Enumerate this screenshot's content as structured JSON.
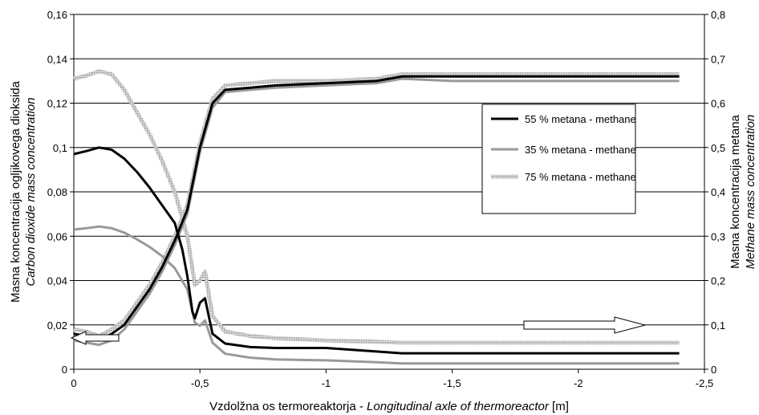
{
  "chart_data": {
    "type": "line",
    "x_axis": {
      "label_plain": "Vzdolžna os termoreaktorja - ",
      "label_italic": "Longitudinal axle of thermoreactor",
      "label_unit": " [m]",
      "range": [
        0,
        -2.5
      ],
      "ticks": [
        0,
        -0.5,
        -1,
        -1.5,
        -2,
        -2.5
      ],
      "tick_labels": [
        "0",
        "-0,5",
        "-1",
        "-1,5",
        "-2",
        "-2,5"
      ]
    },
    "y_left": {
      "label_line1": "Masna koncentracija ogljikovega dioksida",
      "label_line2": "Carbon dioxide mass concentration",
      "range": [
        0,
        0.16
      ],
      "ticks": [
        0,
        0.02,
        0.04,
        0.06,
        0.08,
        0.1,
        0.12,
        0.14,
        0.16
      ],
      "tick_labels": [
        "0",
        "0,02",
        "0,04",
        "0,06",
        "0,08",
        "0,1",
        "0,12",
        "0,14",
        "0,16"
      ]
    },
    "y_right": {
      "label_line1": "Masna koncentracija metana",
      "label_line2": "Methane mass concentration",
      "range": [
        0,
        0.8
      ],
      "ticks": [
        0,
        0.1,
        0.2,
        0.3,
        0.4,
        0.5,
        0.6,
        0.7,
        0.8
      ],
      "tick_labels": [
        "0",
        "0,1",
        "0,2",
        "0,3",
        "0,4",
        "0,5",
        "0,6",
        "0,7",
        "0,8"
      ]
    },
    "grid": "horizontal",
    "legend_placement": "right, inside plot",
    "series": [
      {
        "name": "55 % metana - methane",
        "color": "#000000",
        "style": "solid-thick",
        "methane_curve_x": [
          0,
          -0.05,
          -0.1,
          -0.15,
          -0.2,
          -0.25,
          -0.3,
          -0.35,
          -0.4,
          -0.43,
          -0.45,
          -0.47,
          -0.48,
          -0.5,
          -0.52,
          -0.55,
          -0.6,
          -0.7,
          -0.8,
          -1.0,
          -1.2,
          -1.3,
          -1.5,
          -2.0,
          -2.4
        ],
        "methane_curve_y": [
          0.485,
          0.492,
          0.5,
          0.495,
          0.475,
          0.445,
          0.41,
          0.37,
          0.33,
          0.27,
          0.21,
          0.13,
          0.115,
          0.15,
          0.16,
          0.08,
          0.058,
          0.05,
          0.048,
          0.048,
          0.04,
          0.036,
          0.036,
          0.036,
          0.036
        ],
        "co2_curve_x": [
          0,
          -0.05,
          -0.1,
          -0.15,
          -0.2,
          -0.25,
          -0.3,
          -0.35,
          -0.4,
          -0.45,
          -0.5,
          -0.55,
          -0.6,
          -0.7,
          -0.8,
          -1.0,
          -1.2,
          -1.3,
          -1.5,
          -2.0,
          -2.4
        ],
        "co2_curve_y": [
          0.016,
          0.015,
          0.013,
          0.016,
          0.02,
          0.028,
          0.036,
          0.046,
          0.058,
          0.072,
          0.1,
          0.12,
          0.126,
          0.127,
          0.128,
          0.129,
          0.13,
          0.132,
          0.132,
          0.132,
          0.132
        ]
      },
      {
        "name": "35 % metana - methane",
        "color": "#999999",
        "style": "solid",
        "methane_curve_x": [
          0,
          -0.05,
          -0.1,
          -0.15,
          -0.2,
          -0.25,
          -0.3,
          -0.35,
          -0.4,
          -0.45,
          -0.48,
          -0.5,
          -0.52,
          -0.55,
          -0.6,
          -0.7,
          -0.8,
          -1.0,
          -1.2,
          -1.3,
          -1.5,
          -2.0,
          -2.4
        ],
        "methane_curve_y": [
          0.315,
          0.318,
          0.322,
          0.318,
          0.308,
          0.293,
          0.276,
          0.255,
          0.228,
          0.18,
          0.105,
          0.098,
          0.11,
          0.06,
          0.035,
          0.026,
          0.022,
          0.02,
          0.016,
          0.013,
          0.013,
          0.013,
          0.013
        ],
        "co2_curve_x": [
          0,
          -0.05,
          -0.1,
          -0.15,
          -0.2,
          -0.25,
          -0.3,
          -0.35,
          -0.4,
          -0.45,
          -0.5,
          -0.55,
          -0.6,
          -0.7,
          -0.8,
          -1.0,
          -1.2,
          -1.3,
          -1.5,
          -2.0,
          -2.4
        ],
        "co2_curve_y": [
          0.013,
          0.012,
          0.011,
          0.013,
          0.018,
          0.026,
          0.034,
          0.044,
          0.056,
          0.07,
          0.098,
          0.118,
          0.125,
          0.126,
          0.127,
          0.128,
          0.129,
          0.131,
          0.13,
          0.13,
          0.13
        ]
      },
      {
        "name": "75 % metana - methane",
        "color": "#bdbdbd",
        "style": "dotted-thick",
        "methane_curve_x": [
          0,
          -0.05,
          -0.1,
          -0.15,
          -0.2,
          -0.25,
          -0.3,
          -0.35,
          -0.4,
          -0.45,
          -0.48,
          -0.5,
          -0.52,
          -0.55,
          -0.6,
          -0.7,
          -0.8,
          -1.0,
          -1.2,
          -1.3,
          -1.5,
          -2.0,
          -2.4
        ],
        "methane_curve_y": [
          0.655,
          0.662,
          0.672,
          0.665,
          0.63,
          0.58,
          0.53,
          0.47,
          0.4,
          0.3,
          0.19,
          0.2,
          0.22,
          0.12,
          0.085,
          0.075,
          0.07,
          0.065,
          0.062,
          0.06,
          0.06,
          0.06,
          0.06
        ],
        "co2_curve_x": [
          0,
          -0.05,
          -0.1,
          -0.15,
          -0.2,
          -0.25,
          -0.3,
          -0.35,
          -0.4,
          -0.45,
          -0.5,
          -0.55,
          -0.6,
          -0.7,
          -0.8,
          -1.0,
          -1.2,
          -1.3,
          -1.5,
          -2.0,
          -2.4
        ],
        "co2_curve_y": [
          0.018,
          0.017,
          0.015,
          0.018,
          0.022,
          0.03,
          0.038,
          0.048,
          0.06,
          0.074,
          0.102,
          0.122,
          0.128,
          0.129,
          0.13,
          0.13,
          0.131,
          0.133,
          0.133,
          0.133,
          0.133
        ]
      }
    ],
    "annotations": [
      {
        "kind": "arrow",
        "direction": "left",
        "meaning": "points to left axis (CO2 curves)"
      },
      {
        "kind": "arrow",
        "direction": "right",
        "meaning": "points to right axis (methane curves)"
      }
    ]
  }
}
